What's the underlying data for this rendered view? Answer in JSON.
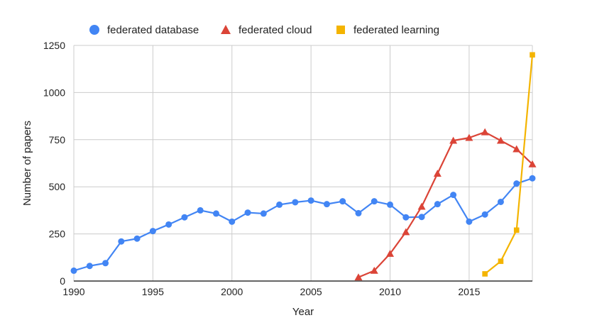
{
  "chart_data": {
    "type": "line",
    "xlabel": "Year",
    "ylabel": "Number of papers",
    "xlim": [
      1990,
      2019
    ],
    "ylim": [
      0,
      1250
    ],
    "x_ticks": [
      1990,
      1995,
      2000,
      2005,
      2010,
      2015
    ],
    "y_ticks": [
      0,
      250,
      500,
      750,
      1000,
      1250
    ],
    "x_tick_labels": [
      "1990",
      "1995",
      "2000",
      "2005",
      "2010",
      "2015"
    ],
    "y_tick_labels": [
      "0",
      "250",
      "500",
      "750",
      "1000",
      "1250"
    ],
    "grid": true,
    "legend_position": "top",
    "series": [
      {
        "name": "federated database",
        "color": "#4285F4",
        "marker": "circle",
        "x": [
          1990,
          1991,
          1992,
          1993,
          1994,
          1995,
          1996,
          1997,
          1998,
          1999,
          2000,
          2001,
          2002,
          2003,
          2004,
          2005,
          2006,
          2007,
          2008,
          2009,
          2010,
          2011,
          2012,
          2013,
          2014,
          2015,
          2016,
          2017,
          2018,
          2019
        ],
        "y": [
          55,
          80,
          95,
          210,
          225,
          265,
          300,
          338,
          375,
          358,
          315,
          363,
          358,
          405,
          418,
          427,
          408,
          423,
          360,
          423,
          405,
          338,
          340,
          408,
          457,
          315,
          353,
          420,
          517,
          545
        ]
      },
      {
        "name": "federated cloud",
        "color": "#DB4437",
        "marker": "triangle",
        "x": [
          2008,
          2009,
          2010,
          2011,
          2012,
          2013,
          2014,
          2015,
          2016,
          2017,
          2018,
          2019
        ],
        "y": [
          20,
          55,
          145,
          260,
          395,
          570,
          745,
          760,
          790,
          745,
          700,
          620
        ]
      },
      {
        "name": "federated learning",
        "color": "#F4B400",
        "marker": "square",
        "x": [
          2016,
          2017,
          2018,
          2019
        ],
        "y": [
          38,
          105,
          270,
          1200
        ]
      }
    ]
  }
}
